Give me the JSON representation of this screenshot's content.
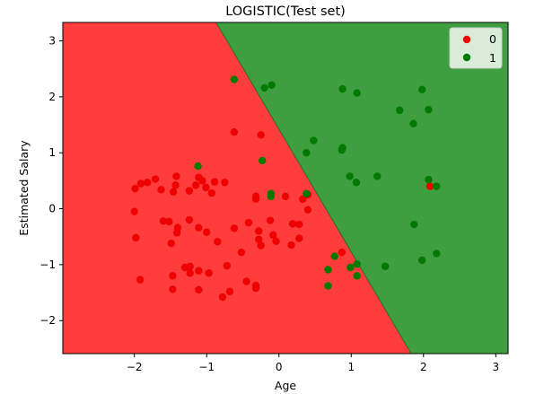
{
  "chart_data": {
    "type": "scatter",
    "title": "LOGISTIC(Test set)",
    "xlabel": "Age",
    "ylabel": "Estimated Salary",
    "xlim": [
      -2.99,
      3.17
    ],
    "ylim": [
      -2.59,
      3.33
    ],
    "xticks": [
      -2,
      -1,
      0,
      1,
      2,
      3
    ],
    "yticks": [
      -2,
      -1,
      0,
      1,
      2,
      3
    ],
    "grid": false,
    "legend_position": "top-right",
    "decision_regions": {
      "class0_color": "#ff3d3d",
      "class1_color": "#3f9e3f",
      "boundary_points": [
        [
          -0.87,
          3.33
        ],
        [
          1.83,
          -2.59
        ]
      ]
    },
    "series": [
      {
        "name": "0",
        "color": "#ee0000",
        "points": [
          [
            -1.99,
            0.36
          ],
          [
            -1.91,
            0.45
          ],
          [
            -1.82,
            0.47
          ],
          [
            -1.71,
            0.53
          ],
          [
            -1.63,
            0.34
          ],
          [
            -1.46,
            0.3
          ],
          [
            -1.43,
            0.42
          ],
          [
            -1.42,
            0.58
          ],
          [
            -1.24,
            0.32
          ],
          [
            -1.15,
            0.42
          ],
          [
            -1.11,
            0.56
          ],
          [
            -1.06,
            0.5
          ],
          [
            -1.01,
            0.38
          ],
          [
            -0.93,
            0.28
          ],
          [
            -0.89,
            0.48
          ],
          [
            -0.75,
            0.47
          ],
          [
            -0.25,
            1.32
          ],
          [
            -0.62,
            1.37
          ],
          [
            -2.0,
            -0.05
          ],
          [
            -1.98,
            -0.52
          ],
          [
            -1.6,
            -0.22
          ],
          [
            -1.52,
            -0.23
          ],
          [
            -1.4,
            -0.34
          ],
          [
            -1.41,
            -0.43
          ],
          [
            -1.24,
            -0.2
          ],
          [
            -1.11,
            -0.34
          ],
          [
            -1.0,
            -0.42
          ],
          [
            -0.85,
            -0.59
          ],
          [
            -0.62,
            -0.35
          ],
          [
            -0.42,
            -0.25
          ],
          [
            -0.32,
            0.17
          ],
          [
            -0.32,
            0.22
          ],
          [
            -0.28,
            -0.4
          ],
          [
            -0.28,
            -0.55
          ],
          [
            -0.25,
            -0.66
          ],
          [
            -0.12,
            -0.21
          ],
          [
            -0.08,
            -0.47
          ],
          [
            -0.04,
            -0.58
          ],
          [
            0.09,
            0.22
          ],
          [
            0.19,
            -0.27
          ],
          [
            0.17,
            -0.65
          ],
          [
            0.28,
            -0.53
          ],
          [
            0.28,
            -0.28
          ],
          [
            0.4,
            -0.02
          ],
          [
            0.4,
            0.25
          ],
          [
            0.33,
            0.17
          ],
          [
            -1.49,
            -0.62
          ],
          [
            -1.92,
            -1.27
          ],
          [
            -1.47,
            -1.2
          ],
          [
            -1.3,
            -1.05
          ],
          [
            -1.23,
            -1.03
          ],
          [
            -1.23,
            -1.15
          ],
          [
            -1.11,
            -1.11
          ],
          [
            -0.97,
            -1.15
          ],
          [
            -0.72,
            -1.02
          ],
          [
            -0.52,
            -0.78
          ],
          [
            -0.45,
            -1.3
          ],
          [
            -0.68,
            -1.48
          ],
          [
            -0.78,
            -1.58
          ],
          [
            -0.32,
            -1.37
          ],
          [
            -0.32,
            -1.42
          ],
          [
            -1.47,
            -1.44
          ],
          [
            -1.11,
            -1.45
          ],
          [
            0.87,
            -0.78
          ],
          [
            2.09,
            0.4
          ]
        ]
      },
      {
        "name": "1",
        "color": "#007a00",
        "points": [
          [
            -1.12,
            0.76
          ],
          [
            -0.62,
            2.31
          ],
          [
            -0.2,
            2.16
          ],
          [
            -0.1,
            2.21
          ],
          [
            -0.23,
            0.86
          ],
          [
            -0.11,
            0.27
          ],
          [
            -0.11,
            0.22
          ],
          [
            0.48,
            1.22
          ],
          [
            0.38,
            1.0
          ],
          [
            0.88,
            2.14
          ],
          [
            1.08,
            2.07
          ],
          [
            0.87,
            1.05
          ],
          [
            0.88,
            1.09
          ],
          [
            1.36,
            0.58
          ],
          [
            1.07,
            0.47
          ],
          [
            0.98,
            0.58
          ],
          [
            0.38,
            0.27
          ],
          [
            1.67,
            1.76
          ],
          [
            1.86,
            1.52
          ],
          [
            1.98,
            2.13
          ],
          [
            2.07,
            1.77
          ],
          [
            2.07,
            0.52
          ],
          [
            2.18,
            0.4
          ],
          [
            1.87,
            -0.28
          ],
          [
            1.98,
            -0.92
          ],
          [
            2.18,
            -0.8
          ],
          [
            1.47,
            -1.03
          ],
          [
            1.08,
            -0.99
          ],
          [
            0.99,
            -1.05
          ],
          [
            1.08,
            -1.2
          ],
          [
            0.77,
            -0.85
          ],
          [
            0.68,
            -1.09
          ],
          [
            0.68,
            -1.38
          ]
        ]
      }
    ]
  }
}
